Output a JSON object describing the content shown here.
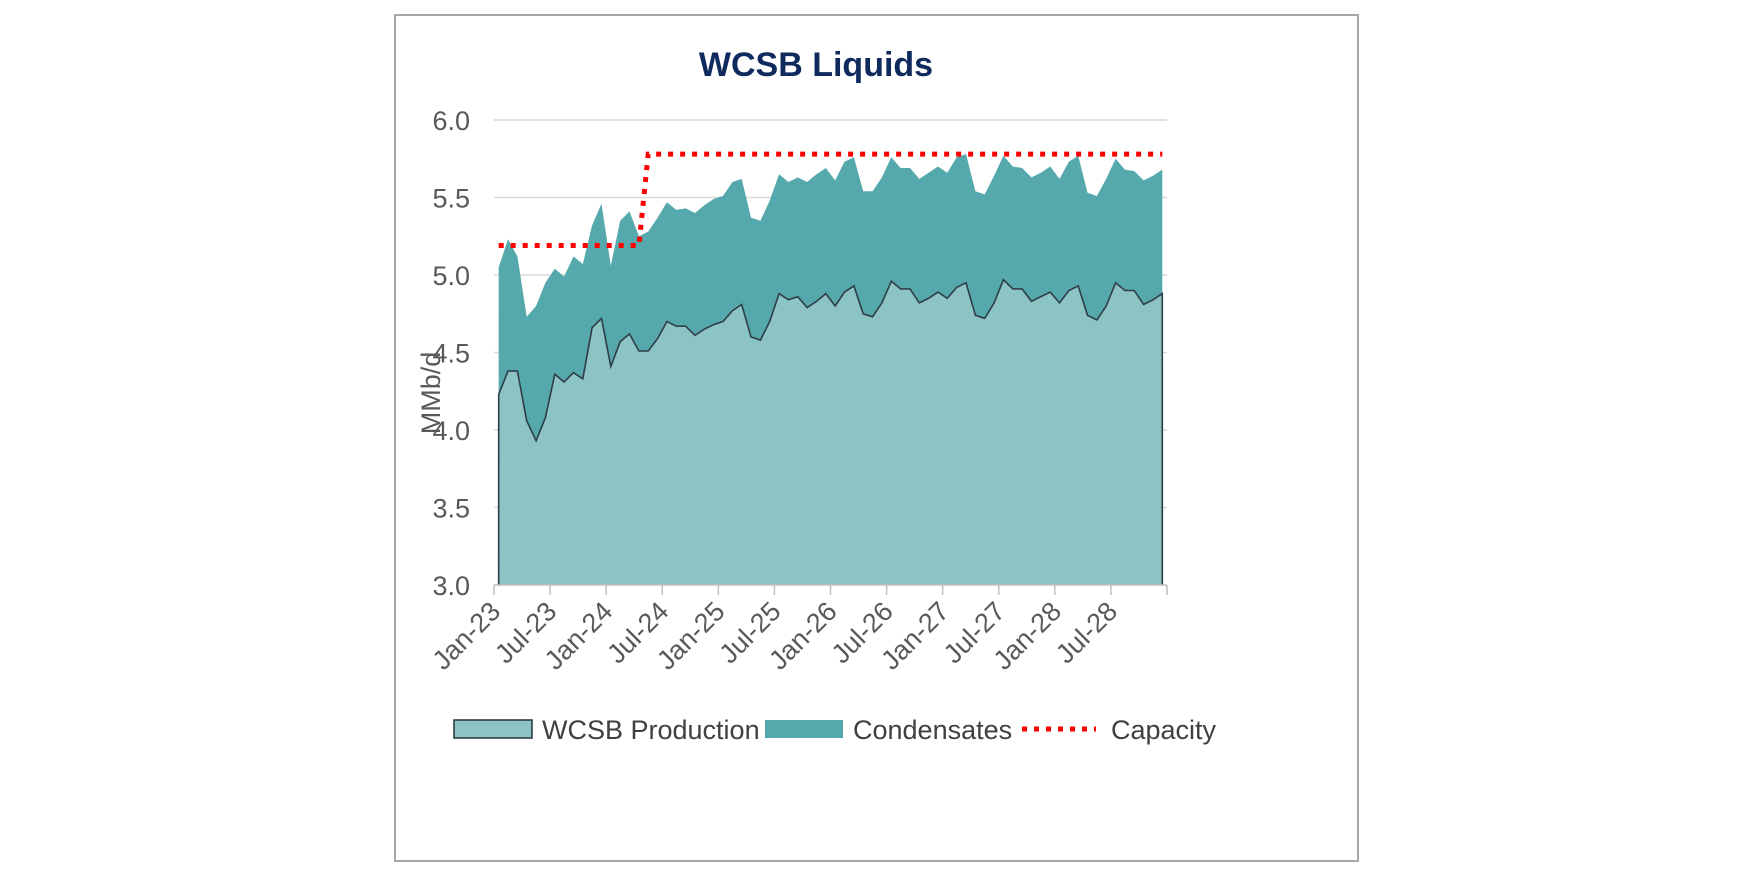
{
  "chart_data": {
    "type": "area",
    "title": "WCSB Liquids",
    "ylabel": "MMb/d",
    "xlabel": "",
    "ylim": [
      3.0,
      6.0
    ],
    "yticks": [
      "3.0",
      "3.5",
      "4.0",
      "4.5",
      "5.0",
      "5.5",
      "6.0"
    ],
    "ytick_values": [
      3.0,
      3.5,
      4.0,
      4.5,
      5.0,
      5.5,
      6.0
    ],
    "xtick_labels": [
      "Jan-23",
      "Jul-23",
      "Jan-24",
      "Jul-24",
      "Jan-25",
      "Jul-25",
      "Jan-26",
      "Jul-26",
      "Jan-27",
      "Jul-27",
      "Jan-28",
      "Jul-28"
    ],
    "grid": true,
    "legend_position": "bottom",
    "x": [
      "Jan-23",
      "Feb-23",
      "Mar-23",
      "Apr-23",
      "May-23",
      "Jun-23",
      "Jul-23",
      "Aug-23",
      "Sep-23",
      "Oct-23",
      "Nov-23",
      "Dec-23",
      "Jan-24",
      "Feb-24",
      "Mar-24",
      "Apr-24",
      "May-24",
      "Jun-24",
      "Jul-24",
      "Aug-24",
      "Sep-24",
      "Oct-24",
      "Nov-24",
      "Dec-24",
      "Jan-25",
      "Feb-25",
      "Mar-25",
      "Apr-25",
      "May-25",
      "Jun-25",
      "Jul-25",
      "Aug-25",
      "Sep-25",
      "Oct-25",
      "Nov-25",
      "Dec-25",
      "Jan-26",
      "Feb-26",
      "Mar-26",
      "Apr-26",
      "May-26",
      "Jun-26",
      "Jul-26",
      "Aug-26",
      "Sep-26",
      "Oct-26",
      "Nov-26",
      "Dec-26",
      "Jan-27",
      "Feb-27",
      "Mar-27",
      "Apr-27",
      "May-27",
      "Jun-27",
      "Jul-27",
      "Aug-27",
      "Sep-27",
      "Oct-27",
      "Nov-27",
      "Dec-27",
      "Jan-28",
      "Feb-28",
      "Mar-28",
      "Apr-28",
      "May-28",
      "Jun-28",
      "Jul-28",
      "Aug-28",
      "Sep-28",
      "Oct-28",
      "Nov-28",
      "Dec-28"
    ],
    "series": [
      {
        "name": "WCSB Production",
        "color": "#8cc4c6",
        "values": [
          4.23,
          4.38,
          4.38,
          4.06,
          3.93,
          4.08,
          4.36,
          4.31,
          4.37,
          4.33,
          4.66,
          4.72,
          4.41,
          4.57,
          4.62,
          4.51,
          4.51,
          4.59,
          4.7,
          4.67,
          4.67,
          4.61,
          4.65,
          4.68,
          4.7,
          4.77,
          4.81,
          4.6,
          4.58,
          4.7,
          4.88,
          4.84,
          4.86,
          4.79,
          4.83,
          4.88,
          4.8,
          4.89,
          4.93,
          4.75,
          4.73,
          4.82,
          4.96,
          4.91,
          4.91,
          4.82,
          4.85,
          4.89,
          4.85,
          4.92,
          4.95,
          4.74,
          4.72,
          4.82,
          4.97,
          4.91,
          4.91,
          4.83,
          4.86,
          4.89,
          4.82,
          4.9,
          4.93,
          4.74,
          4.71,
          4.8,
          4.95,
          4.9,
          4.9,
          4.81,
          4.84,
          4.88
        ]
      },
      {
        "name": "Condensates",
        "color": "#55a8ac",
        "values": [
          5.05,
          5.23,
          5.12,
          4.73,
          4.8,
          4.95,
          5.04,
          4.99,
          5.12,
          5.07,
          5.32,
          5.46,
          5.06,
          5.35,
          5.41,
          5.25,
          5.28,
          5.37,
          5.47,
          5.42,
          5.43,
          5.4,
          5.45,
          5.49,
          5.51,
          5.6,
          5.62,
          5.37,
          5.35,
          5.48,
          5.65,
          5.6,
          5.63,
          5.6,
          5.65,
          5.69,
          5.61,
          5.73,
          5.76,
          5.54,
          5.54,
          5.63,
          5.76,
          5.69,
          5.69,
          5.62,
          5.66,
          5.7,
          5.66,
          5.76,
          5.78,
          5.54,
          5.52,
          5.64,
          5.77,
          5.7,
          5.69,
          5.63,
          5.66,
          5.7,
          5.62,
          5.73,
          5.77,
          5.53,
          5.51,
          5.62,
          5.75,
          5.68,
          5.67,
          5.61,
          5.64,
          5.68
        ]
      },
      {
        "name": "Capacity",
        "color": "#ff0000",
        "style": "dotted",
        "step_points": [
          [
            "Jan-23",
            5.19
          ],
          [
            "Apr-24",
            5.19
          ],
          [
            "May-24",
            5.78
          ],
          [
            "Dec-28",
            5.78
          ]
        ]
      }
    ]
  }
}
